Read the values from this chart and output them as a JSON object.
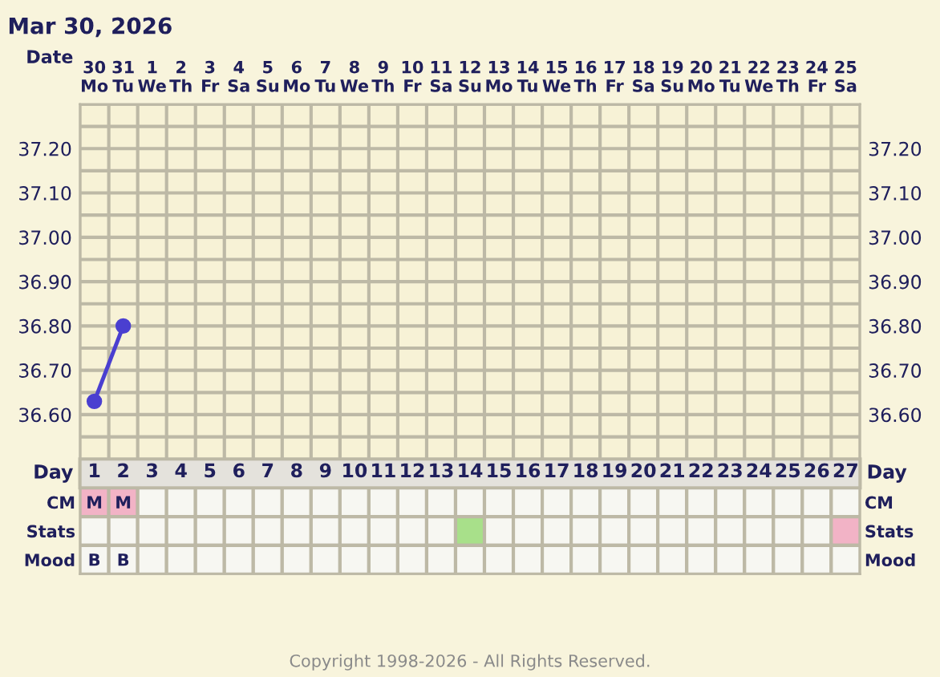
{
  "chart_data": [
    {
      "type": "line",
      "title": "Mar 30, 2026",
      "xlabel": "Date",
      "categories": [
        "30\nMo",
        "31\nTu",
        "1\nWe",
        "2\nTh",
        "3\nFr",
        "4\nSa",
        "5\nSu",
        "6\nMo",
        "7\nTu",
        "8\nWe",
        "9\nTh",
        "10\nFr",
        "11\nSa",
        "12\nSu",
        "13\nMo",
        "14\nTu",
        "15\nWe",
        "16\nTh",
        "17\nFr",
        "18\nSa",
        "19\nSu",
        "20\nMo",
        "21\nTu",
        "22\nWe",
        "23\nTh",
        "24\nFr",
        "25\nSa"
      ],
      "series": [
        {
          "color": "#4a3fd0",
          "values": [
            36.63,
            36.8,
            null,
            null,
            null,
            null,
            null,
            null,
            null,
            null,
            null,
            null,
            null,
            null,
            null,
            null,
            null,
            null,
            null,
            null,
            null,
            null,
            null,
            null,
            null,
            null,
            null
          ]
        }
      ],
      "ylim": [
        36.5,
        37.3
      ],
      "yticks": [
        {
          "value": 36.6,
          "label": "36.60"
        },
        {
          "value": 36.7,
          "label": "36.70"
        },
        {
          "value": 36.8,
          "label": "36.80"
        },
        {
          "value": 36.9,
          "label": "36.90"
        },
        {
          "value": 37.0,
          "label": "37.00"
        },
        {
          "value": 37.1,
          "label": "37.10"
        },
        {
          "value": 37.2,
          "label": "37.20"
        }
      ],
      "y2lim": [
        36.5,
        37.3
      ],
      "y2ticks": [
        {
          "value": 36.6,
          "label": "36.60"
        },
        {
          "value": 36.7,
          "label": "36.70"
        },
        {
          "value": 36.8,
          "label": "36.80"
        },
        {
          "value": 36.9,
          "label": "36.90"
        },
        {
          "value": 37.0,
          "label": "37.00"
        },
        {
          "value": 37.1,
          "label": "37.10"
        },
        {
          "value": 37.2,
          "label": "37.20"
        }
      ],
      "grid": true,
      "marker": "circle",
      "line_style": "solid",
      "legend": false,
      "annotations": [
        "Copyright 1998-2026 - All Rights Reserved."
      ]
    },
    {
      "type": "heatmap",
      "ylabel": "Day",
      "y2label": "Day",
      "categories": [
        "1",
        "2",
        "3",
        "4",
        "5",
        "6",
        "7",
        "8",
        "9",
        "10",
        "11",
        "12",
        "13",
        "14",
        "15",
        "16",
        "17",
        "18",
        "19",
        "20",
        "21",
        "22",
        "23",
        "24",
        "25",
        "26",
        "27"
      ],
      "y_categories": [
        "CM",
        "Stats",
        "Mood"
      ],
      "y2_categories": [
        "CM",
        "Stats",
        "Mood"
      ],
      "cells": [
        [
          null,
          null,
          null,
          null,
          null,
          null,
          null,
          null,
          null,
          null,
          null,
          null,
          null,
          null,
          null,
          null,
          null,
          null,
          null,
          null,
          null,
          null,
          null,
          null,
          null,
          null,
          null
        ],
        [
          null,
          null,
          null,
          null,
          null,
          null,
          null,
          null,
          null,
          null,
          null,
          null,
          null,
          null,
          null,
          null,
          null,
          null,
          null,
          null,
          null,
          null,
          null,
          null,
          null,
          null,
          null
        ],
        [
          null,
          null,
          null,
          null,
          null,
          null,
          null,
          null,
          null,
          null,
          null,
          null,
          null,
          null,
          null,
          null,
          null,
          null,
          null,
          null,
          null,
          null,
          null,
          null,
          null,
          null,
          null
        ]
      ],
      "cell_labels": [
        [
          "M",
          "M",
          null,
          null,
          null,
          null,
          null,
          null,
          null,
          null,
          null,
          null,
          null,
          null,
          null,
          null,
          null,
          null,
          null,
          null,
          null,
          null,
          null,
          null,
          null,
          null,
          null
        ],
        [
          null,
          null,
          null,
          null,
          null,
          null,
          null,
          null,
          null,
          null,
          null,
          null,
          null,
          null,
          null,
          null,
          null,
          null,
          null,
          null,
          null,
          null,
          null,
          null,
          null,
          null,
          null
        ],
        [
          "B",
          "B",
          null,
          null,
          null,
          null,
          null,
          null,
          null,
          null,
          null,
          null,
          null,
          null,
          null,
          null,
          null,
          null,
          null,
          null,
          null,
          null,
          null,
          null,
          null,
          null,
          null
        ]
      ],
      "colors": [
        [
          "#f2b3c6",
          "#f2b3c6",
          null,
          null,
          null,
          null,
          null,
          null,
          null,
          null,
          null,
          null,
          null,
          null,
          null,
          null,
          null,
          null,
          null,
          null,
          null,
          null,
          null,
          null,
          null,
          null,
          null
        ],
        [
          null,
          null,
          null,
          null,
          null,
          null,
          null,
          null,
          null,
          null,
          null,
          null,
          null,
          "#a8e08a",
          null,
          null,
          null,
          null,
          null,
          null,
          null,
          null,
          null,
          null,
          null,
          null,
          "#f2b3c6"
        ],
        [
          null,
          null,
          null,
          null,
          null,
          null,
          null,
          null,
          null,
          null,
          null,
          null,
          null,
          null,
          null,
          null,
          null,
          null,
          null,
          null,
          null,
          null,
          null,
          null,
          null,
          null,
          null
        ]
      ]
    }
  ]
}
